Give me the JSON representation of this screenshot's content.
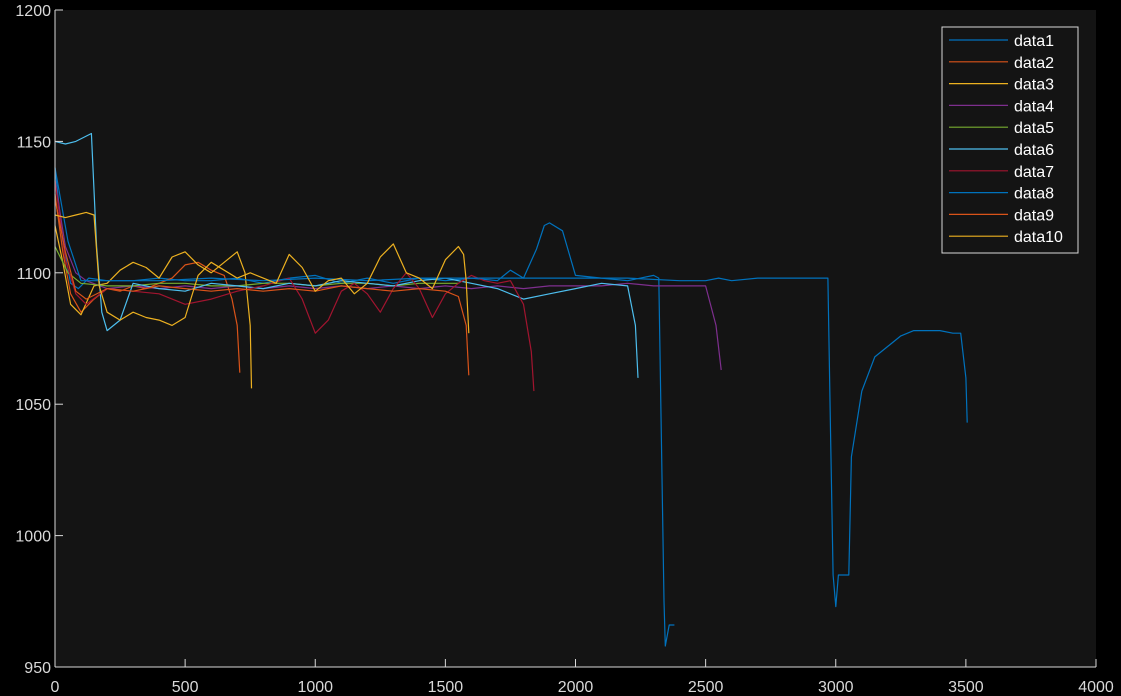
{
  "chart_data": {
    "type": "line",
    "title": "",
    "xlabel": "",
    "ylabel": "",
    "xlim": [
      0,
      4000
    ],
    "ylim": [
      950,
      1200
    ],
    "xticks": [
      0,
      500,
      1000,
      1500,
      2000,
      2500,
      3000,
      3500,
      4000
    ],
    "yticks": [
      950,
      1000,
      1050,
      1100,
      1150,
      1200
    ],
    "grid": false,
    "legend_position": "top-right",
    "background": "#141414",
    "axis_color": "#d9d9d9",
    "series": [
      {
        "name": "data1",
        "color": "#0072BD",
        "x": [
          0,
          30,
          60,
          90,
          130,
          200,
          300,
          400,
          500,
          600,
          700,
          800,
          900,
          1000,
          1100,
          1200,
          1300,
          1400,
          1500,
          1600,
          1700,
          1750,
          1800,
          1850,
          1880,
          1900,
          1950,
          2000,
          2100,
          2200,
          2300,
          2320,
          2340,
          2345,
          2360,
          2380
        ],
        "y": [
          1140,
          1112,
          1096,
          1094,
          1098,
          1097,
          1097,
          1098,
          1097,
          1097,
          1098,
          1096,
          1098,
          1099,
          1096,
          1098,
          1096,
          1098,
          1097,
          1098,
          1097,
          1101,
          1098,
          1109,
          1118,
          1119,
          1116,
          1099,
          1098,
          1097,
          1099,
          1098,
          975,
          958,
          966,
          966
        ]
      },
      {
        "name": "data2",
        "color": "#D95319",
        "x": [
          0,
          30,
          60,
          100,
          150,
          200,
          250,
          300,
          350,
          400,
          450,
          500,
          550,
          600,
          650,
          680,
          700,
          710
        ],
        "y": [
          1130,
          1108,
          1092,
          1085,
          1090,
          1094,
          1093,
          1095,
          1094,
          1096,
          1098,
          1103,
          1104,
          1101,
          1099,
          1090,
          1080,
          1062
        ]
      },
      {
        "name": "data3",
        "color": "#EDB120",
        "x": [
          0,
          30,
          60,
          100,
          150,
          200,
          250,
          300,
          350,
          400,
          450,
          500,
          550,
          600,
          650,
          700,
          730,
          750,
          755
        ],
        "y": [
          1118,
          1104,
          1088,
          1084,
          1095,
          1096,
          1101,
          1104,
          1102,
          1098,
          1106,
          1108,
          1103,
          1100,
          1104,
          1108,
          1100,
          1080,
          1056
        ]
      },
      {
        "name": "data4",
        "color": "#7E2F8E",
        "x": [
          0,
          40,
          80,
          120,
          200,
          300,
          400,
          500,
          600,
          700,
          800,
          900,
          1000,
          1100,
          1200,
          1300,
          1400,
          1500,
          1600,
          1700,
          1800,
          1900,
          2000,
          2100,
          2200,
          2300,
          2400,
          2500,
          2540,
          2560
        ],
        "y": [
          1135,
          1110,
          1100,
          1097,
          1094,
          1095,
          1094,
          1095,
          1094,
          1095,
          1094,
          1095,
          1094,
          1095,
          1094,
          1095,
          1094,
          1095,
          1094,
          1095,
          1094,
          1095,
          1095,
          1095,
          1096,
          1095,
          1095,
          1095,
          1080,
          1063
        ]
      },
      {
        "name": "data5",
        "color": "#77AC30",
        "x": [
          0,
          50,
          100,
          200,
          300,
          400,
          500,
          600,
          700,
          800,
          900,
          1000,
          1100,
          1200,
          1300,
          1400,
          1500,
          1550
        ],
        "y": [
          1110,
          1100,
          1096,
          1095,
          1095,
          1096,
          1096,
          1095,
          1095,
          1096,
          1096,
          1095,
          1096,
          1096,
          1095,
          1096,
          1096,
          1096
        ]
      },
      {
        "name": "data6",
        "color": "#4DBEEE",
        "x": [
          0,
          40,
          80,
          120,
          140,
          160,
          180,
          200,
          250,
          300,
          400,
          500,
          600,
          700,
          800,
          900,
          1000,
          1100,
          1200,
          1300,
          1400,
          1500,
          1600,
          1700,
          1800,
          1900,
          2000,
          2100,
          2200,
          2230,
          2240
        ],
        "y": [
          1150,
          1149,
          1150,
          1152,
          1153,
          1110,
          1085,
          1078,
          1082,
          1096,
          1094,
          1093,
          1096,
          1095,
          1094,
          1096,
          1095,
          1097,
          1096,
          1095,
          1097,
          1098,
          1096,
          1094,
          1090,
          1092,
          1094,
          1096,
          1095,
          1080,
          1060
        ]
      },
      {
        "name": "data7",
        "color": "#A2142F",
        "x": [
          0,
          40,
          80,
          120,
          200,
          300,
          400,
          500,
          600,
          700,
          800,
          900,
          950,
          1000,
          1050,
          1100,
          1150,
          1200,
          1250,
          1300,
          1350,
          1400,
          1450,
          1500,
          1550,
          1600,
          1650,
          1700,
          1750,
          1800,
          1830,
          1840
        ],
        "y": [
          1135,
          1105,
          1092,
          1088,
          1094,
          1093,
          1092,
          1088,
          1090,
          1093,
          1095,
          1098,
          1090,
          1077,
          1082,
          1093,
          1096,
          1092,
          1085,
          1094,
          1100,
          1094,
          1083,
          1092,
          1096,
          1099,
          1097,
          1096,
          1097,
          1088,
          1070,
          1055
        ]
      },
      {
        "name": "data8",
        "color": "#0072BD",
        "x": [
          0,
          50,
          100,
          200,
          400,
          600,
          800,
          1000,
          1200,
          1400,
          1600,
          1800,
          2000,
          2200,
          2400,
          2500,
          2550,
          2600,
          2700,
          2800,
          2900,
          2950,
          2970,
          2980,
          2990,
          3000,
          3010,
          3050,
          3060,
          3100,
          3150,
          3200,
          3250,
          3300,
          3400,
          3450,
          3480,
          3500,
          3505
        ],
        "y": [
          1140,
          1112,
          1097,
          1097,
          1097,
          1098,
          1097,
          1098,
          1097,
          1098,
          1098,
          1098,
          1098,
          1098,
          1097,
          1097,
          1098,
          1097,
          1098,
          1098,
          1098,
          1098,
          1098,
          1040,
          985,
          973,
          985,
          985,
          1030,
          1055,
          1068,
          1072,
          1076,
          1078,
          1078,
          1077,
          1077,
          1060,
          1043
        ]
      },
      {
        "name": "data9",
        "color": "#D95319",
        "x": [
          0,
          40,
          80,
          120,
          200,
          300,
          400,
          500,
          600,
          700,
          800,
          900,
          1000,
          1100,
          1200,
          1300,
          1400,
          1500,
          1550,
          1580,
          1590
        ],
        "y": [
          1128,
          1108,
          1093,
          1090,
          1094,
          1093,
          1095,
          1094,
          1093,
          1094,
          1093,
          1094,
          1093,
          1095,
          1094,
          1093,
          1094,
          1093,
          1091,
          1080,
          1061
        ]
      },
      {
        "name": "data10",
        "color": "#EDB120",
        "x": [
          0,
          40,
          80,
          120,
          150,
          170,
          200,
          250,
          300,
          350,
          400,
          450,
          500,
          550,
          600,
          650,
          700,
          750,
          800,
          850,
          900,
          950,
          1000,
          1050,
          1100,
          1150,
          1200,
          1250,
          1300,
          1350,
          1400,
          1450,
          1500,
          1550,
          1570,
          1580,
          1590
        ],
        "y": [
          1122,
          1121,
          1122,
          1123,
          1122,
          1095,
          1085,
          1082,
          1085,
          1083,
          1082,
          1080,
          1083,
          1099,
          1104,
          1101,
          1098,
          1100,
          1098,
          1096,
          1107,
          1102,
          1093,
          1097,
          1098,
          1092,
          1096,
          1106,
          1111,
          1100,
          1098,
          1094,
          1105,
          1110,
          1107,
          1097,
          1077
        ]
      }
    ]
  }
}
